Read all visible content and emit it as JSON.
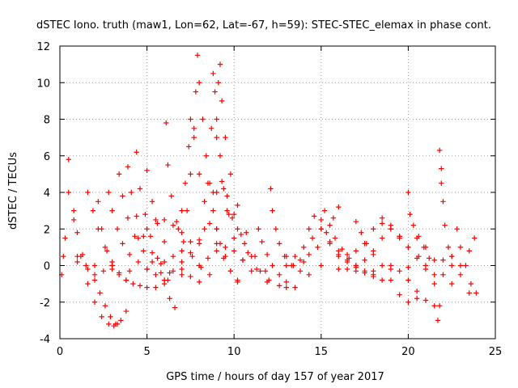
{
  "chart_data": {
    "type": "scatter",
    "title": "dSTEC Iono. truth (maw1, Lon=62, Lat=-67, h=59): STEC-STEC_elemax in phase cont.",
    "xlabel": "GPS time / hours of day 157 of year 2017",
    "ylabel": "dSTEC  / TECUs",
    "xlim": [
      0,
      25
    ],
    "ylim": [
      -4,
      12
    ],
    "xticks": [
      0,
      5,
      10,
      15,
      20,
      25
    ],
    "yticks": [
      -4,
      -2,
      0,
      2,
      4,
      6,
      8,
      10,
      12
    ],
    "grid": true,
    "legend": "none",
    "marker": "+",
    "color": "#ff0000",
    "series": [
      {
        "x": [
          0.1,
          0.2,
          0.3,
          0.5,
          0.8,
          1.0,
          1.3,
          1.6,
          2.0,
          2.5,
          3.0
        ],
        "y": [
          -0.5,
          0.5,
          1.5,
          4.0,
          3.0,
          1.8,
          0.6,
          -0.2,
          -0.5,
          -0.3,
          0.0
        ]
      },
      {
        "x": [
          0.5,
          0.8,
          1.2,
          1.6,
          2.0,
          2.4,
          2.8,
          3.1,
          3.3
        ],
        "y": [
          5.8,
          2.5,
          0.5,
          -1.0,
          -2.0,
          -2.8,
          -3.2,
          -3.3,
          -3.2
        ]
      },
      {
        "x": [
          1.0,
          1.5,
          2.0,
          2.3,
          2.6,
          2.9,
          3.2,
          3.5,
          3.8
        ],
        "y": [
          0.5,
          0.0,
          -0.8,
          -1.5,
          -2.2,
          -2.8,
          -3.2,
          -3.0,
          -2.5
        ]
      },
      {
        "x": [
          1.6,
          1.9,
          2.2,
          2.6,
          3.0,
          3.4,
          3.8
        ],
        "y": [
          4.0,
          3.0,
          2.0,
          1.0,
          0.2,
          -0.4,
          -0.8
        ]
      },
      {
        "x": [
          2.2,
          2.4,
          2.7,
          3.0,
          3.4,
          3.8,
          4.2,
          4.6,
          5.0
        ],
        "y": [
          3.5,
          2.0,
          0.8,
          0.0,
          -0.5,
          -0.8,
          -1.0,
          -1.1,
          -1.2
        ]
      },
      {
        "x": [
          2.8,
          3.0,
          3.3,
          3.6,
          4.0,
          4.5,
          5.0,
          5.5,
          6.0
        ],
        "y": [
          4.0,
          3.0,
          2.0,
          1.2,
          0.6,
          0.2,
          -0.2,
          -0.5,
          -0.8
        ]
      },
      {
        "x": [
          3.4,
          3.6,
          3.9,
          4.3,
          4.8,
          5.3,
          5.8,
          6.2
        ],
        "y": [
          5.0,
          3.8,
          2.6,
          1.6,
          0.8,
          0.2,
          -0.4,
          -0.8
        ]
      },
      {
        "x": [
          3.9,
          4.1,
          4.4,
          4.8,
          5.3,
          5.8,
          6.3
        ],
        "y": [
          5.4,
          4.0,
          2.7,
          1.6,
          0.7,
          0.1,
          -0.4
        ]
      },
      {
        "x": [
          4.4,
          4.6,
          4.9,
          5.2,
          5.6,
          6.0,
          6.3,
          6.6
        ],
        "y": [
          6.2,
          4.2,
          2.8,
          1.6,
          0.4,
          -0.8,
          -1.8,
          -2.3
        ]
      },
      {
        "x": [
          5.0,
          5.3,
          5.6,
          6.0,
          6.5,
          7.0,
          7.5,
          8.0
        ],
        "y": [
          5.2,
          3.5,
          2.3,
          1.3,
          0.5,
          -0.2,
          -0.6,
          -0.9
        ]
      },
      {
        "x": [
          6.1,
          6.2,
          6.4,
          6.7,
          7.1,
          7.6,
          8.1,
          8.6
        ],
        "y": [
          7.8,
          5.5,
          3.8,
          2.4,
          1.3,
          0.5,
          -0.1,
          -0.5
        ]
      },
      {
        "x": [
          4.5,
          5.0,
          5.5,
          6.0,
          6.5,
          7.0,
          7.5
        ],
        "y": [
          1.5,
          2.0,
          2.5,
          2.5,
          2.2,
          1.8,
          1.3
        ]
      },
      {
        "x": [
          1.0,
          2.0,
          3.0,
          4.0,
          5.0,
          6.0,
          7.0,
          8.0,
          9.0
        ],
        "y": [
          0.2,
          0.0,
          -0.2,
          -0.3,
          -0.2,
          0.2,
          0.8,
          1.4,
          2.0
        ]
      },
      {
        "x": [
          5.5,
          6.0,
          6.5,
          7.0,
          7.5,
          8.0
        ],
        "y": [
          -1.2,
          -0.8,
          -0.3,
          0.2,
          0.7,
          1.2
        ]
      },
      {
        "x": [
          7.3,
          7.5,
          7.7,
          7.8,
          7.9,
          8.0,
          8.2,
          8.4,
          8.6,
          8.8,
          9.0,
          9.2,
          9.5,
          9.8,
          10.2
        ],
        "y": [
          3.0,
          5.0,
          7.5,
          9.5,
          11.5,
          10.0,
          8.0,
          6.0,
          4.5,
          3.0,
          2.0,
          1.2,
          0.5,
          -0.3,
          -0.9
        ]
      },
      {
        "x": [
          6.8,
          7.0,
          7.2,
          7.4,
          7.5,
          7.7,
          8.0,
          8.3,
          8.6,
          9.0,
          9.4,
          9.8,
          10.2
        ],
        "y": [
          2.0,
          3.0,
          4.5,
          6.5,
          8.0,
          7.0,
          5.0,
          3.5,
          2.3,
          1.2,
          0.4,
          -0.3,
          -0.8
        ]
      },
      {
        "x": [
          8.3,
          8.5,
          8.7,
          8.8,
          8.9,
          9.0,
          9.2,
          9.4,
          9.7,
          10.0,
          10.5
        ],
        "y": [
          2.0,
          4.5,
          7.5,
          10.5,
          9.5,
          8.0,
          6.0,
          4.2,
          2.8,
          1.5,
          0.3
        ]
      },
      {
        "x": [
          8.8,
          9.0,
          9.1,
          9.2,
          9.3,
          9.5,
          9.8,
          10.2,
          10.7,
          11.2,
          11.8
        ],
        "y": [
          4.0,
          7.0,
          10.0,
          11.0,
          9.0,
          7.0,
          5.0,
          3.3,
          1.8,
          0.5,
          -0.3
        ]
      },
      {
        "x": [
          9.0,
          9.3,
          9.6,
          10.0,
          10.4,
          10.8,
          11.3,
          11.9
        ],
        "y": [
          4.0,
          4.6,
          3.8,
          2.8,
          1.7,
          0.7,
          -0.2,
          -0.9
        ]
      },
      {
        "x": [
          9.6,
          9.9,
          10.2,
          10.6,
          11.0,
          11.5,
          12.0,
          12.6,
          13.0
        ],
        "y": [
          3.0,
          2.6,
          2.0,
          1.2,
          0.5,
          -0.3,
          -0.8,
          -1.1,
          -1.2
        ]
      },
      {
        "x": [
          6.0,
          7.0,
          8.0,
          8.5,
          9.0,
          9.5,
          10.0,
          10.5,
          11.0
        ],
        "y": [
          -1.0,
          -0.5,
          0.0,
          0.4,
          0.8,
          1.0,
          0.8,
          0.3,
          -0.3
        ]
      },
      {
        "x": [
          11.4,
          11.6,
          11.9,
          12.2,
          12.6,
          13.0,
          13.5
        ],
        "y": [
          2.0,
          1.3,
          0.6,
          0.0,
          -0.5,
          -0.9,
          -1.2
        ]
      },
      {
        "x": [
          12.1,
          12.2,
          12.4,
          12.6,
          12.9,
          13.3,
          13.8,
          14.3
        ],
        "y": [
          4.2,
          3.0,
          2.0,
          1.2,
          0.5,
          0.0,
          -0.3,
          -0.5
        ]
      },
      {
        "x": [
          13.0,
          13.5,
          14.0,
          14.3,
          14.6,
          15.0,
          15.5,
          16.0,
          16.5
        ],
        "y": [
          0.0,
          0.5,
          1.0,
          2.0,
          2.7,
          2.0,
          1.2,
          0.6,
          0.2
        ]
      },
      {
        "x": [
          13.4,
          13.8,
          14.3,
          14.8,
          15.3,
          15.7,
          16.0
        ],
        "y": [
          0.0,
          0.3,
          0.6,
          1.0,
          1.8,
          2.6,
          3.2
        ]
      },
      {
        "x": [
          14.5,
          15.0,
          15.2,
          15.5,
          15.8,
          16.2,
          16.6,
          17.0,
          17.5,
          18.0
        ],
        "y": [
          1.5,
          2.5,
          3.0,
          2.2,
          1.5,
          0.9,
          0.4,
          0.0,
          -0.3,
          -0.5
        ]
      },
      {
        "x": [
          15.0,
          15.5,
          16.0,
          16.5,
          17.0,
          17.5,
          18.0,
          18.5
        ],
        "y": [
          2.0,
          1.3,
          0.8,
          0.3,
          -0.1,
          -0.4,
          -0.6,
          -0.8
        ]
      },
      {
        "x": [
          13.0,
          14.0,
          15.0,
          16.0,
          17.0,
          18.0,
          19.0,
          20.0
        ],
        "y": [
          0.5,
          0.2,
          0.0,
          -0.2,
          -0.3,
          -0.3,
          -0.2,
          -0.1
        ]
      },
      {
        "x": [
          16.0,
          16.5,
          17.0,
          17.5,
          18.0,
          18.5,
          19.0,
          19.5
        ],
        "y": [
          0.5,
          0.6,
          0.8,
          1.2,
          2.0,
          2.6,
          2.2,
          1.6
        ]
      },
      {
        "x": [
          16.5,
          17.0,
          17.5,
          18.0,
          18.5,
          19.0,
          19.5,
          20.0
        ],
        "y": [
          -0.2,
          0.0,
          0.3,
          0.8,
          1.5,
          2.0,
          1.5,
          1.0
        ]
      },
      {
        "x": [
          17.0,
          17.3,
          17.6,
          18.0,
          18.5,
          19.0,
          19.5,
          20.0,
          20.5
        ],
        "y": [
          2.4,
          1.8,
          1.2,
          0.6,
          0.0,
          -0.8,
          -1.6,
          -2.0,
          -1.8
        ]
      },
      {
        "x": [
          19.0,
          19.5,
          20.0,
          20.5,
          21.0,
          21.5,
          21.8
        ],
        "y": [
          0.0,
          -0.3,
          -0.8,
          -1.4,
          -1.9,
          -2.2,
          -2.2
        ]
      },
      {
        "x": [
          18.5,
          19.0,
          19.5,
          20.0,
          20.5,
          21.0
        ],
        "y": [
          2.3,
          2.0,
          1.6,
          1.0,
          0.4,
          -0.2
        ]
      },
      {
        "x": [
          20.0,
          20.1,
          20.3,
          20.6,
          20.9,
          21.2,
          21.5,
          21.7
        ],
        "y": [
          4.0,
          2.8,
          2.2,
          1.6,
          1.0,
          0.4,
          -1.0,
          -3.0
        ]
      },
      {
        "x": [
          21.8,
          21.9,
          21.9,
          22.0,
          22.1,
          22.3,
          22.5
        ],
        "y": [
          6.3,
          5.3,
          4.5,
          3.5,
          2.2,
          1.0,
          0.0
        ]
      },
      {
        "x": [
          20.6,
          21.0,
          21.5,
          22.0,
          22.5,
          23.0,
          23.5
        ],
        "y": [
          0.5,
          0.0,
          -0.5,
          0.3,
          0.5,
          -0.5,
          -1.5
        ]
      },
      {
        "x": [
          20.5,
          21.0,
          21.5,
          22.0,
          22.5,
          23.0,
          23.5,
          23.8
        ],
        "y": [
          1.5,
          1.0,
          0.3,
          -0.5,
          -1.0,
          0.0,
          0.8,
          1.5
        ]
      },
      {
        "x": [
          22.5,
          22.8,
          23.0,
          23.3,
          23.6,
          23.9
        ],
        "y": [
          0.5,
          2.0,
          1.0,
          0.0,
          -1.0,
          -1.5
        ]
      }
    ]
  }
}
